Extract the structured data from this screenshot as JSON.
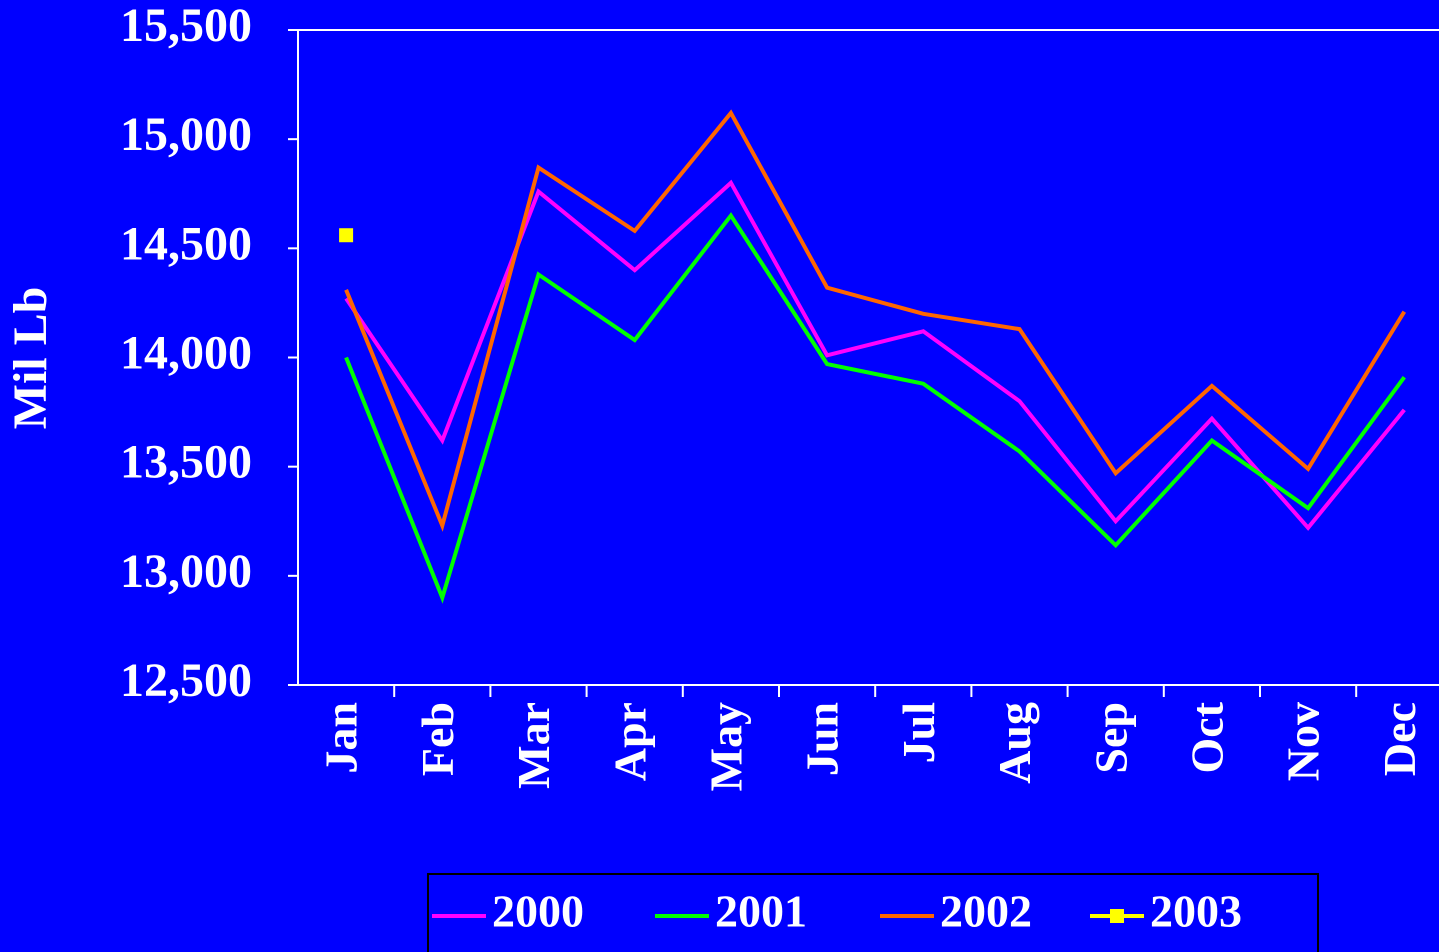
{
  "chart_data": {
    "type": "line",
    "y_label": "Mil Lb",
    "categories": [
      "Jan",
      "Feb",
      "Mar",
      "Apr",
      "May",
      "Jun",
      "Jul",
      "Aug",
      "Sep",
      "Oct",
      "Nov",
      "Dec"
    ],
    "series": [
      {
        "name": "2000",
        "color": "#ff00ff",
        "values": [
          14270,
          13620,
          14760,
          14400,
          14800,
          14010,
          14120,
          13800,
          13250,
          13720,
          13220,
          13760
        ]
      },
      {
        "name": "2001",
        "color": "#00ff00",
        "values": [
          14000,
          12900,
          14380,
          14080,
          14650,
          13970,
          13880,
          13570,
          13140,
          13620,
          13310,
          13910
        ]
      },
      {
        "name": "2002",
        "color": "#ff6600",
        "values": [
          14310,
          13230,
          14870,
          14580,
          15120,
          14320,
          14200,
          14130,
          13470,
          13870,
          13490,
          14210
        ]
      },
      {
        "name": "2003",
        "color": "#ffff00",
        "marker": "square",
        "values": [
          14560,
          null,
          null,
          null,
          null,
          null,
          null,
          null,
          null,
          null,
          null,
          null
        ]
      }
    ],
    "ylim": [
      12500,
      15500
    ],
    "yticks": [
      {
        "value": 12500,
        "label": "12,500"
      },
      {
        "value": 13000,
        "label": "13,000"
      },
      {
        "value": 13500,
        "label": "13,500"
      },
      {
        "value": 14000,
        "label": "14,000"
      },
      {
        "value": 14500,
        "label": "14,500"
      },
      {
        "value": 15000,
        "label": "15,000"
      },
      {
        "value": 15500,
        "label": "15,500"
      }
    ],
    "legend": "bottom"
  }
}
